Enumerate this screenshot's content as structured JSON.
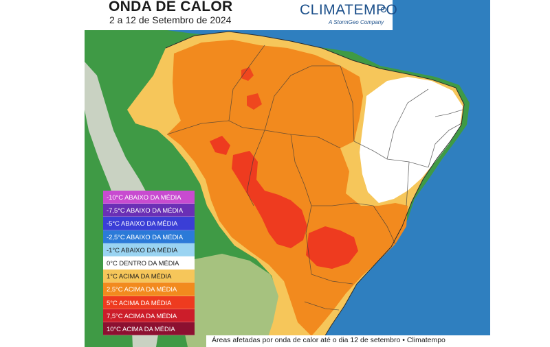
{
  "header": {
    "title": "ONDA DE CALOR",
    "subtitle": "2 a 12 de Setembro de 2024"
  },
  "logo": {
    "name": "CLIMATEMPO",
    "tagline": "A StormGeo Company",
    "mark_icon": "climatempo-swirl-icon"
  },
  "legend": {
    "items": [
      {
        "label": "-10°C ABAIXO DA MÉDIA",
        "color": "#c84bd0"
      },
      {
        "label": "-7,5°C ABAIXO DA MÉDIA",
        "color": "#6a2fb5"
      },
      {
        "label": "-5°C ABAIXO DA MÉDIA",
        "color": "#3a3ed6"
      },
      {
        "label": "-2,5°C ABAIXO DA MÉDIA",
        "color": "#2b7ad8"
      },
      {
        "label": "-1°C ABAIXO DA MÉDIA",
        "color": "#9ad4f2"
      },
      {
        "label": "0°C DENTRO DA MÉDIA",
        "color": "#ffffff"
      },
      {
        "label": "1°C ACIMA DA MÉDIA",
        "color": "#f6c65a"
      },
      {
        "label": "2,5°C ACIMA DA MÉDIA",
        "color": "#f28a1e"
      },
      {
        "label": "5°C ACIMA DA MÉDIA",
        "color": "#ee3b1f"
      },
      {
        "label": "7,5°C ACIMA DA MÉDIA",
        "color": "#cc1d2a"
      },
      {
        "label": "10°C ACIMA DA MÉDIA",
        "color": "#8c1030"
      }
    ]
  },
  "footer": {
    "caption": "Áreas afetadas por onda de calor até o dia 12 de setembro • Climatempo"
  },
  "map": {
    "colors": {
      "ocean": "#2f7fbf",
      "land_forest": "#3f9a45",
      "land_dry": "#b9c98a",
      "andes": "#d8d8cf",
      "anomaly_1": "#f6c65a",
      "anomaly_2_5": "#f28a1e",
      "anomaly_5": "#ee3b1f",
      "anomaly_neutral": "#ffffff",
      "border": "#3a3a3a"
    }
  }
}
